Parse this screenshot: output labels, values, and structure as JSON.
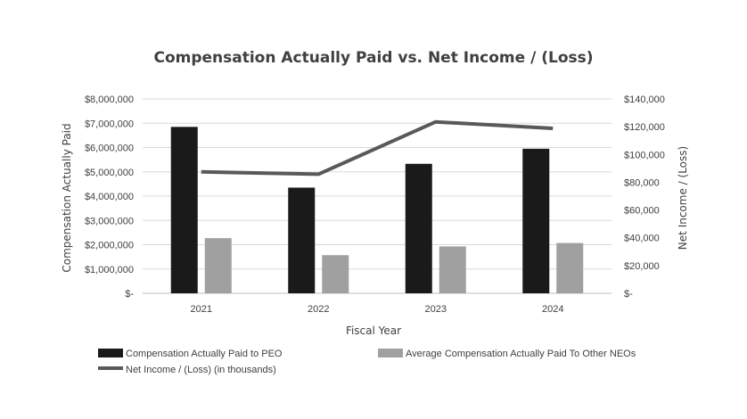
{
  "chart_data": {
    "type": "bar",
    "title": "Compensation Actually Paid vs. Net Income / (Loss)",
    "xlabel": "Fiscal Year",
    "ylabel": "Compensation Actually Paid",
    "y2label": "Net Income / (Loss)",
    "categories": [
      "2021",
      "2022",
      "2023",
      "2024"
    ],
    "ylim": [
      0,
      8000000
    ],
    "y2lim": [
      0,
      140000
    ],
    "yticks": [
      "$-",
      "$1,000,000",
      "$2,000,000",
      "$3,000,000",
      "$4,000,000",
      "$5,000,000",
      "$6,000,000",
      "$7,000,000",
      "$8,000,000"
    ],
    "y2ticks": [
      "$-",
      "$20,000",
      "$40,000",
      "$60,000",
      "$80,000",
      "$100,000",
      "$120,000",
      "$140,000"
    ],
    "grid": true,
    "legend_position": "bottom",
    "series": [
      {
        "name": "Compensation Actually Paid to PEO",
        "type": "bar",
        "axis": "left",
        "color": "#1a1a1a",
        "values": [
          6850000,
          4350000,
          5330000,
          5950000
        ]
      },
      {
        "name": "Average Compensation Actually Paid To Other NEOs",
        "type": "bar",
        "axis": "left",
        "color": "#a0a0a0",
        "values": [
          2270000,
          1570000,
          1930000,
          2070000
        ]
      },
      {
        "name": "Net Income / (Loss) (in thousands)",
        "type": "line",
        "axis": "right",
        "color": "#595959",
        "values": [
          87500,
          85800,
          123500,
          118800
        ]
      }
    ]
  }
}
